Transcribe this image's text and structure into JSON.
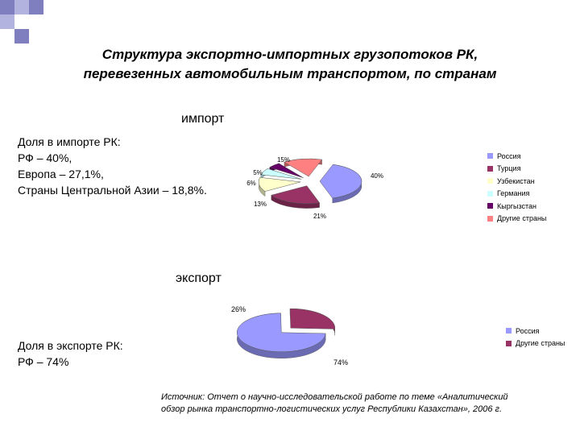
{
  "title": {
    "line1": "Структура экспортно-импортных грузопотоков РК,",
    "line2": "перевезенных автомобильным транспортом, по странам"
  },
  "import_section": {
    "subtitle": "импорт",
    "share_lines": [
      "Доля в импорте РК:",
      "РФ – 40%,",
      "Европа – 27,1%,",
      "Страны Центральной Азии – 18,8%."
    ]
  },
  "export_section": {
    "subtitle": "экспорт",
    "share_lines": [
      "Доля в экспорте РК:",
      "РФ – 74%"
    ]
  },
  "source": {
    "line1": "Источник: Отчет о научно-исследовательской работе по теме «Аналитический",
    "line2": "обзор рынка транспортно-логистических услуг Республики Казахстан», 2006 г."
  },
  "chart_data": [
    {
      "type": "pie",
      "title": "импорт",
      "categories": [
        "Россия",
        "Турция",
        "Узбекистан",
        "Германия",
        "Кыргызстан",
        "Другие страны"
      ],
      "values": [
        40,
        21,
        13,
        6,
        5,
        15
      ],
      "labels": [
        "40%",
        "21%",
        "13%",
        "6%",
        "5%",
        "15%"
      ],
      "colors": [
        "#9999ff",
        "#993366",
        "#ffffcc",
        "#ccffff",
        "#660066",
        "#ff8080"
      ],
      "legend_position": "right",
      "style": "3d-exploded"
    },
    {
      "type": "pie",
      "title": "экспорт",
      "categories": [
        "Россия",
        "Другие страны"
      ],
      "values": [
        74,
        26
      ],
      "labels": [
        "74%",
        "26%"
      ],
      "colors": [
        "#9999ff",
        "#993366"
      ],
      "legend_position": "right",
      "style": "3d-exploded"
    }
  ]
}
